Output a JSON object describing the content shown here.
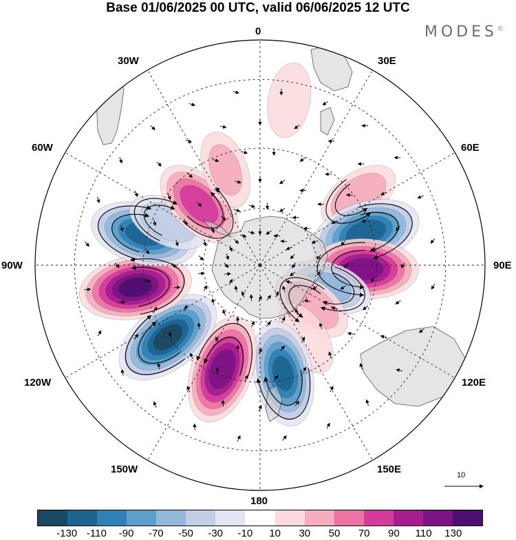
{
  "title": "Base 01/06/2025 00 UTC, valid 06/06/2025 12 UTC",
  "brand": "MODES",
  "brand_mark": "©",
  "lon_labels": {
    "n0": "0",
    "e30": "30E",
    "e60": "60E",
    "e90": "90E",
    "e120": "120E",
    "e150": "150E",
    "s180": "180",
    "w150": "150W",
    "w120": "120W",
    "w90": "90W",
    "w60": "60W",
    "w30": "30W"
  },
  "vector_reference": "10",
  "colorbar": {
    "colors": [
      "#1b4964",
      "#1e6490",
      "#2f82b6",
      "#5c9fcb",
      "#93b8da",
      "#c2cde6",
      "#e3e4f1",
      "#ffffff",
      "#fbd9dc",
      "#f6aebf",
      "#ec74a5",
      "#d43c9c",
      "#a61d90",
      "#7d1486",
      "#4f0e72"
    ],
    "ticks": [
      "-130",
      "-110",
      "-90",
      "-70",
      "-50",
      "-30",
      "-10",
      "10",
      "30",
      "50",
      "70",
      "90",
      "110",
      "130"
    ]
  },
  "map": {
    "projection": "south-polar-stereographic",
    "anomalies": [
      {
        "lon": 55,
        "lat": -49,
        "value": 45
      },
      {
        "lon": 73,
        "lat": -52,
        "value": -120
      },
      {
        "lon": 92,
        "lat": -54,
        "value": 115
      },
      {
        "lon": 108,
        "lat": -65,
        "value": -55
      },
      {
        "lon": 128,
        "lat": -67,
        "value": 45
      },
      {
        "lon": 148,
        "lat": -60,
        "value": 25
      },
      {
        "lon": 168,
        "lat": -52,
        "value": -110
      },
      {
        "lon": -160,
        "lat": -52,
        "value": 120
      },
      {
        "lon": -128,
        "lat": -50,
        "value": -130
      },
      {
        "lon": -100,
        "lat": -47,
        "value": 130
      },
      {
        "lon": -75,
        "lat": -49,
        "value": -115
      },
      {
        "lon": -65,
        "lat": -55,
        "value": -40
      },
      {
        "lon": -45,
        "lat": -60,
        "value": 80
      },
      {
        "lon": -20,
        "lat": -55,
        "value": 30
      },
      {
        "lon": 10,
        "lat": -35,
        "value": 20
      }
    ]
  }
}
